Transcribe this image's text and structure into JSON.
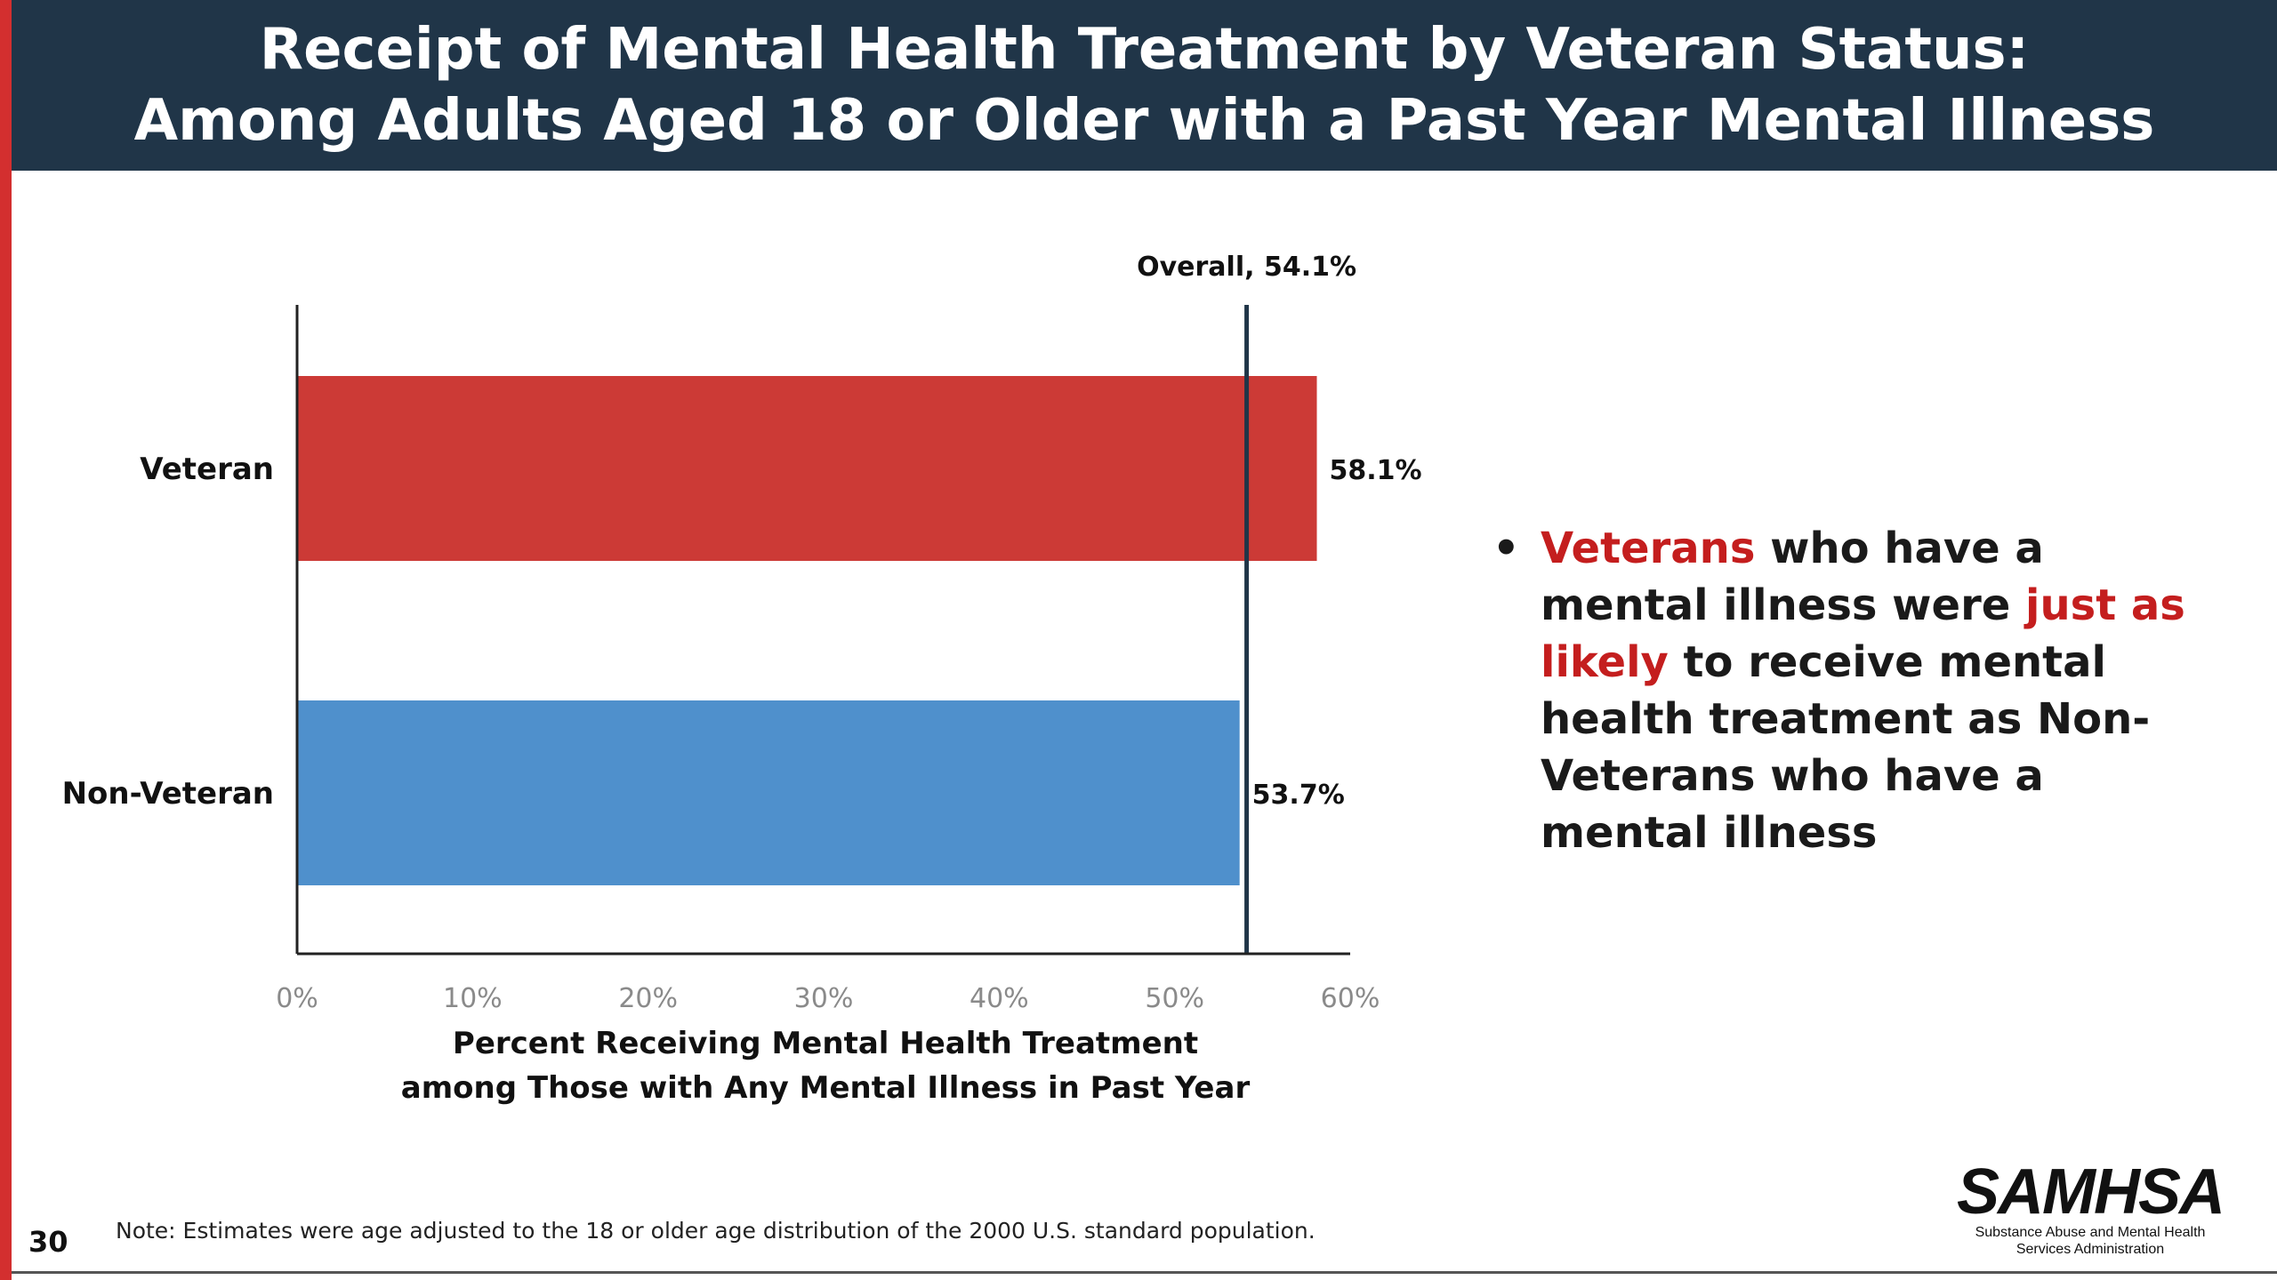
{
  "header": {
    "title_line1": "Receipt of Mental Health Treatment by Veteran Status:",
    "title_line2": "Among Adults Aged 18 or Older with a Past Year Mental Illness"
  },
  "chart_data": {
    "type": "bar",
    "orientation": "horizontal",
    "categories": [
      "Veteran",
      "Non-Veteran"
    ],
    "values": [
      58.1,
      53.7
    ],
    "data_labels": [
      "58.1%",
      "53.7%"
    ],
    "colors": [
      "#cc3a36",
      "#4f90cc"
    ],
    "xlim": [
      0,
      60
    ],
    "xticks": [
      "0%",
      "10%",
      "20%",
      "30%",
      "40%",
      "50%",
      "60%"
    ],
    "xlabel_line1": "Percent Receiving Mental Health Treatment",
    "xlabel_line2": "among Those with Any Mental Illness in Past Year",
    "reference_line": {
      "label": "Overall, 54.1%",
      "value": 54.1
    }
  },
  "callout": {
    "bullet": "•",
    "highlight1": "Veterans",
    "text1": " who have a mental illness were ",
    "highlight2": "just as likely",
    "text2": " to receive mental health treatment as Non-Veterans who have a mental illness"
  },
  "footer": {
    "note": "Note: Estimates were age adjusted to the 18 or older age distribution of the 2000 U.S. standard population.",
    "page_number": "30",
    "logo_name": "SAMHSA",
    "logo_subtitle_line1": "Substance Abuse and Mental Health",
    "logo_subtitle_line2": "Services Administration"
  }
}
